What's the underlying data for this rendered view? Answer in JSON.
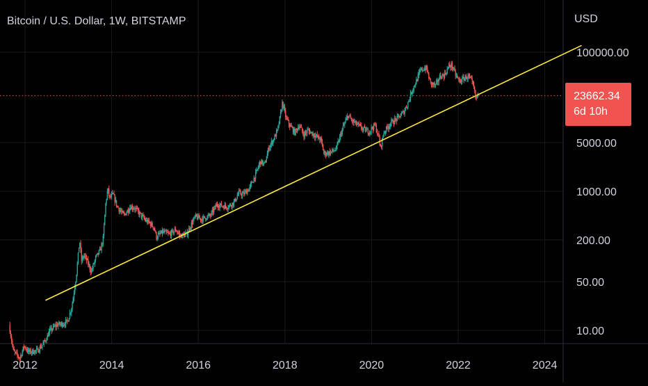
{
  "header": {
    "title": "Bitcoin / U.S. Dollar, 1W, BITSTAMP",
    "currency": "USD"
  },
  "last_price": {
    "value": "23662.34",
    "countdown": "6d 10h"
  },
  "colors": {
    "background": "#000000",
    "up": "#26a69a",
    "down": "#ef5350",
    "trendline": "#ffeb3b",
    "price_line": "#ef5350",
    "grid": "#1a1a1a",
    "axis_text": "#d1d4dc"
  },
  "chart_data": {
    "type": "candlestick",
    "title": "Bitcoin / U.S. Dollar, 1W, BITSTAMP",
    "y_scale": "log",
    "ylim": [
      5,
      150000
    ],
    "xlim": [
      2011.6,
      2024.9
    ],
    "x_ticks": [
      "2012",
      "2014",
      "2016",
      "2018",
      "2020",
      "2022",
      "2024"
    ],
    "y_ticks": [
      "100000.00",
      "5000.00",
      "1000.00",
      "200.00",
      "50.00",
      "10.00"
    ],
    "grid": true,
    "last_price": 23662.34,
    "price_path": [
      [
        2011.65,
        12
      ],
      [
        2011.75,
        5
      ],
      [
        2011.9,
        4
      ],
      [
        2012.0,
        6
      ],
      [
        2012.1,
        4.9
      ],
      [
        2012.3,
        5.1
      ],
      [
        2012.45,
        6.5
      ],
      [
        2012.6,
        10
      ],
      [
        2012.75,
        12
      ],
      [
        2012.9,
        12.5
      ],
      [
        2013.0,
        13.5
      ],
      [
        2013.1,
        22
      ],
      [
        2013.2,
        60
      ],
      [
        2013.28,
        200
      ],
      [
        2013.32,
        100
      ],
      [
        2013.38,
        120
      ],
      [
        2013.45,
        100
      ],
      [
        2013.55,
        70
      ],
      [
        2013.65,
        110
      ],
      [
        2013.75,
        140
      ],
      [
        2013.82,
        200
      ],
      [
        2013.88,
        650
      ],
      [
        2013.93,
        1100
      ],
      [
        2013.97,
        800
      ],
      [
        2014.05,
        900
      ],
      [
        2014.15,
        600
      ],
      [
        2014.3,
        450
      ],
      [
        2014.45,
        600
      ],
      [
        2014.55,
        580
      ],
      [
        2014.7,
        450
      ],
      [
        2014.8,
        380
      ],
      [
        2014.9,
        350
      ],
      [
        2015.0,
        300
      ],
      [
        2015.05,
        220
      ],
      [
        2015.2,
        260
      ],
      [
        2015.35,
        240
      ],
      [
        2015.5,
        280
      ],
      [
        2015.6,
        230
      ],
      [
        2015.75,
        240
      ],
      [
        2015.85,
        330
      ],
      [
        2015.95,
        430
      ],
      [
        2016.1,
        400
      ],
      [
        2016.3,
        450
      ],
      [
        2016.45,
        650
      ],
      [
        2016.55,
        620
      ],
      [
        2016.7,
        600
      ],
      [
        2016.85,
        700
      ],
      [
        2016.95,
        950
      ],
      [
        2017.05,
        900
      ],
      [
        2017.2,
        1100
      ],
      [
        2017.35,
        1800
      ],
      [
        2017.45,
        2700
      ],
      [
        2017.55,
        2400
      ],
      [
        2017.65,
        4300
      ],
      [
        2017.75,
        5500
      ],
      [
        2017.85,
        7500
      ],
      [
        2017.92,
        13000
      ],
      [
        2017.96,
        19000
      ],
      [
        2018.05,
        11000
      ],
      [
        2018.15,
        8500
      ],
      [
        2018.25,
        7000
      ],
      [
        2018.35,
        9000
      ],
      [
        2018.45,
        6500
      ],
      [
        2018.55,
        7500
      ],
      [
        2018.7,
        6500
      ],
      [
        2018.85,
        5500
      ],
      [
        2018.92,
        3500
      ],
      [
        2019.05,
        3600
      ],
      [
        2019.2,
        4000
      ],
      [
        2019.35,
        8000
      ],
      [
        2019.48,
        12500
      ],
      [
        2019.55,
        10500
      ],
      [
        2019.7,
        9000
      ],
      [
        2019.8,
        8000
      ],
      [
        2019.95,
        7200
      ],
      [
        2020.1,
        9000
      ],
      [
        2020.2,
        5500
      ],
      [
        2020.22,
        4000
      ],
      [
        2020.3,
        7000
      ],
      [
        2020.45,
        9500
      ],
      [
        2020.6,
        11000
      ],
      [
        2020.75,
        13500
      ],
      [
        2020.85,
        18000
      ],
      [
        2020.95,
        28000
      ],
      [
        2021.05,
        38000
      ],
      [
        2021.15,
        55000
      ],
      [
        2021.28,
        60000
      ],
      [
        2021.38,
        36000
      ],
      [
        2021.5,
        33000
      ],
      [
        2021.6,
        45000
      ],
      [
        2021.7,
        47000
      ],
      [
        2021.8,
        62000
      ],
      [
        2021.87,
        66000
      ],
      [
        2021.95,
        48000
      ],
      [
        2022.05,
        38000
      ],
      [
        2022.15,
        42000
      ],
      [
        2022.25,
        45000
      ],
      [
        2022.33,
        38000
      ],
      [
        2022.38,
        30000
      ],
      [
        2022.43,
        21000
      ],
      [
        2022.46,
        23662
      ]
    ],
    "trendline": {
      "start": [
        2012.47,
        27
      ],
      "end": [
        2024.85,
        125000
      ]
    },
    "annotations": [
      {
        "type": "horizontal_line",
        "y": 23662.34,
        "style": "dotted"
      }
    ]
  }
}
